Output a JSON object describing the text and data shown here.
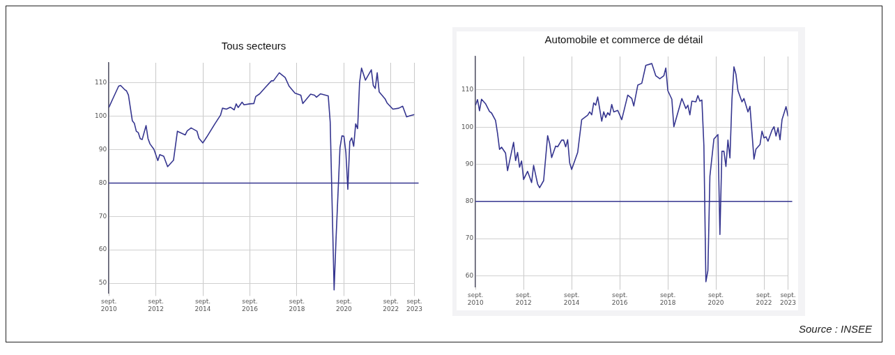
{
  "chart_data": [
    {
      "type": "line",
      "title": "Tous secteurs",
      "x": [
        "2010-09",
        "2010-11",
        "2011-02",
        "2011-03",
        "2011-05",
        "2011-06",
        "2011-07",
        "2011-09",
        "2011-10",
        "2011-11",
        "2011-12",
        "2012-01",
        "2012-02",
        "2012-04",
        "2012-05",
        "2012-06",
        "2012-08",
        "2012-10",
        "2012-11",
        "2013-01",
        "2013-03",
        "2013-06",
        "2013-08",
        "2013-12",
        "2014-01",
        "2014-03",
        "2014-06",
        "2014-07",
        "2014-09",
        "2014-11",
        "2015-03",
        "2015-06",
        "2015-07",
        "2015-09",
        "2015-11",
        "2016-01",
        "2016-02",
        "2016-03",
        "2016-05",
        "2016-06",
        "2016-09",
        "2016-11",
        "2016-12",
        "2017-02",
        "2017-05",
        "2017-08",
        "2017-09",
        "2017-12",
        "2018-03",
        "2018-05",
        "2018-08",
        "2018-11",
        "2018-12",
        "2019-04",
        "2019-06",
        "2019-07",
        "2019-09",
        "2020-01",
        "2020-02",
        "2020-04",
        "2020-05",
        "2020-07",
        "2020-08",
        "2020-09",
        "2020-10",
        "2020-11",
        "2020-12",
        "2021-01",
        "2021-02",
        "2021-03",
        "2021-04",
        "2021-05",
        "2021-06",
        "2021-08",
        "2021-11",
        "2021-12",
        "2022-01",
        "2022-02",
        "2022-03",
        "2022-06",
        "2022-07",
        "2022-10",
        "2023-01",
        "2023-03",
        "2023-05",
        "2023-07",
        "2023-09"
      ],
      "series": [
        {
          "color": "#35358f",
          "values": [
            102.6,
            105.2,
            109.0,
            109.2,
            108.0,
            107.6,
            106.3,
            98.6,
            97.9,
            95.5,
            95.1,
            93.3,
            93.0,
            97.2,
            93.3,
            91.7,
            90.1,
            86.7,
            88.5,
            88.0,
            84.9,
            86.8,
            95.5,
            94.4,
            95.6,
            96.5,
            95.5,
            93.4,
            92.0,
            93.8,
            97.6,
            100.3,
            102.4,
            102.1,
            102.7,
            101.9,
            103.7,
            102.6,
            104.2,
            103.4,
            103.7,
            103.8,
            105.9,
            106.7,
            108.7,
            110.6,
            110.6,
            113.0,
            111.6,
            109.0,
            106.9,
            106.3,
            103.8,
            106.6,
            106.3,
            105.7,
            106.7,
            106.1,
            98.3,
            48.0,
            63.5,
            90.6,
            94.1,
            94.0,
            89.2,
            78.1,
            92.4,
            93.5,
            91.0,
            97.7,
            96.3,
            110.1,
            114.4,
            110.8,
            113.9,
            109.2,
            108.3,
            113.0,
            107.3,
            105.2,
            104.0,
            102.1,
            102.4,
            103.0,
            99.8,
            100.2,
            100.5
          ]
        }
      ],
      "xlim": [
        "2010-09",
        "2023-09"
      ],
      "xticks": [
        {
          "value": "2010-09",
          "label": "sept. 2010"
        },
        {
          "value": "2012-09",
          "label": "sept. 2012"
        },
        {
          "value": "2014-09",
          "label": "sept. 2014"
        },
        {
          "value": "2016-09",
          "label": "sept. 2016"
        },
        {
          "value": "2018-09",
          "label": "sept. 2018"
        },
        {
          "value": "2020-09",
          "label": "sept. 2020"
        },
        {
          "value": "2022-09",
          "label": "sept. 2022"
        },
        {
          "value": "2023-09",
          "label": "sept. 2023"
        }
      ],
      "ylim": [
        47,
        116
      ],
      "yticks": [
        50,
        60,
        70,
        80,
        90,
        100,
        110
      ],
      "ref_lines": [
        {
          "axis": "y",
          "value": 80,
          "color": "#35358f"
        }
      ],
      "grid": true,
      "legend": false,
      "marker": "none",
      "line_style": "solid"
    },
    {
      "type": "line",
      "title": "Automobile et commerce de détail",
      "x": [
        "2010-09",
        "2010-10",
        "2010-11",
        "2010-12",
        "2011-02",
        "2011-04",
        "2011-05",
        "2011-07",
        "2011-08",
        "2011-09",
        "2011-10",
        "2011-12",
        "2012-01",
        "2012-04",
        "2012-05",
        "2012-06",
        "2012-07",
        "2012-08",
        "2012-09",
        "2012-11",
        "2013-01",
        "2013-02",
        "2013-04",
        "2013-05",
        "2013-07",
        "2013-09",
        "2013-10",
        "2013-11",
        "2014-01",
        "2014-02",
        "2014-04",
        "2014-05",
        "2014-06",
        "2014-07",
        "2014-08",
        "2014-09",
        "2014-12",
        "2015-02",
        "2015-05",
        "2015-06",
        "2015-07",
        "2015-08",
        "2015-09",
        "2015-10",
        "2015-12",
        "2016-01",
        "2016-02",
        "2016-03",
        "2016-04",
        "2016-05",
        "2016-06",
        "2016-08",
        "2016-10",
        "2017-01",
        "2017-03",
        "2017-04",
        "2017-06",
        "2017-08",
        "2017-10",
        "2018-01",
        "2018-03",
        "2018-05",
        "2018-07",
        "2018-08",
        "2018-09",
        "2018-11",
        "2018-12",
        "2019-04",
        "2019-06",
        "2019-07",
        "2019-08",
        "2019-09",
        "2019-11",
        "2019-12",
        "2020-01",
        "2020-02",
        "2020-03",
        "2020-04",
        "2020-05",
        "2020-06",
        "2020-08",
        "2020-10",
        "2020-11",
        "2020-12",
        "2021-01",
        "2021-02",
        "2021-03",
        "2021-04",
        "2021-05",
        "2021-06",
        "2021-07",
        "2021-08",
        "2021-10",
        "2021-11",
        "2022-01",
        "2022-02",
        "2022-04",
        "2022-05",
        "2022-07",
        "2022-08",
        "2022-09",
        "2022-10",
        "2022-11",
        "2023-01",
        "2023-02",
        "2023-03",
        "2023-04",
        "2023-05",
        "2023-06",
        "2023-08",
        "2023-09"
      ],
      "series": [
        {
          "color": "#35358f",
          "values": [
            105.9,
            107.4,
            104.4,
            107.5,
            106.3,
            104.2,
            103.8,
            101.8,
            98.3,
            94.0,
            94.6,
            93.0,
            88.3,
            95.9,
            91.0,
            93.2,
            89.2,
            90.9,
            85.9,
            88.1,
            85.1,
            89.7,
            84.7,
            83.7,
            85.6,
            97.7,
            95.6,
            91.8,
            94.9,
            94.7,
            96.5,
            96.5,
            94.7,
            96.6,
            90.4,
            88.6,
            93.2,
            102.0,
            103.2,
            104.1,
            103.3,
            106.5,
            105.9,
            108.1,
            101.6,
            104.1,
            102.6,
            103.9,
            103.2,
            106.1,
            104.1,
            104.5,
            102.0,
            108.6,
            107.7,
            105.7,
            111.3,
            111.8,
            116.6,
            117.1,
            113.8,
            113.0,
            113.8,
            115.9,
            109.8,
            107.5,
            100.1,
            107.7,
            105.0,
            105.9,
            103.3,
            107.0,
            106.8,
            108.5,
            107.0,
            107.3,
            95.0,
            58.4,
            61.4,
            86.8,
            96.8,
            98.0,
            71.1,
            93.5,
            93.5,
            89.4,
            96.5,
            91.7,
            107.4,
            116.2,
            114.2,
            109.8,
            106.8,
            107.7,
            104.1,
            105.6,
            91.4,
            94.1,
            95.3,
            98.9,
            97.1,
            97.4,
            96.2,
            99.2,
            100.1,
            97.6,
            99.8,
            96.6,
            102.0,
            105.5,
            102.9
          ]
        }
      ],
      "xlim": [
        "2010-09",
        "2023-09"
      ],
      "xticks": [
        {
          "value": "2010-09",
          "label": "sept. 2010"
        },
        {
          "value": "2012-09",
          "label": "sept. 2012"
        },
        {
          "value": "2014-09",
          "label": "sept. 2014"
        },
        {
          "value": "2016-09",
          "label": "sept. 2016"
        },
        {
          "value": "2018-09",
          "label": "sept. 2018"
        },
        {
          "value": "2020-09",
          "label": "sept. 2020"
        },
        {
          "value": "2022-09",
          "label": "sept. 2022"
        },
        {
          "value": "2023-09",
          "label": "sept. 2023"
        }
      ],
      "ylim": [
        57,
        119
      ],
      "yticks": [
        60,
        70,
        80,
        90,
        100,
        110
      ],
      "ref_lines": [
        {
          "axis": "y",
          "value": 80,
          "color": "#35358f"
        }
      ],
      "grid": true,
      "legend": false,
      "marker": "none",
      "line_style": "solid",
      "annotations": [
        "Source : INSEE"
      ]
    }
  ]
}
